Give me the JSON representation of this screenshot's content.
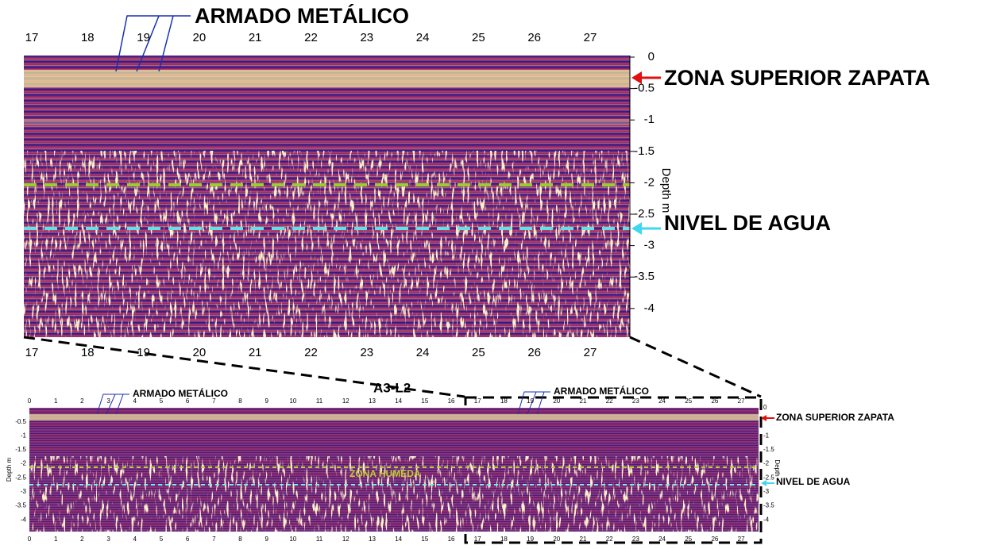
{
  "top_panel": {
    "x_ticks_top": [
      17,
      18,
      19,
      20,
      21,
      22,
      23,
      24,
      25,
      26,
      27
    ],
    "x_ticks_bottom": [
      17,
      18,
      19,
      20,
      21,
      22,
      23,
      24,
      25,
      26,
      27
    ],
    "y_ticks": [
      0,
      -0.5,
      -1,
      -1.5,
      -2,
      -2.5,
      -3,
      -3.5,
      -4
    ],
    "y_label": "Depth m",
    "annotations": {
      "rebar": "ARMADO METÁLICO",
      "footing_top": "ZONA SUPERIOR ZAPATA",
      "water_level": "NIVEL DE AGUA"
    }
  },
  "bottom_panel": {
    "title": "A3-L2",
    "x_ticks_top": [
      0,
      1,
      2,
      3,
      4,
      5,
      6,
      7,
      8,
      9,
      10,
      11,
      12,
      13,
      14,
      15,
      16,
      17,
      18,
      19,
      20,
      21,
      22,
      23,
      24,
      25,
      26,
      27
    ],
    "x_ticks_bottom": [
      0,
      1,
      2,
      3,
      4,
      5,
      6,
      7,
      8,
      9,
      10,
      11,
      12,
      13,
      14,
      15,
      16,
      17,
      18,
      19,
      20,
      21,
      22,
      23,
      24,
      25,
      26,
      27
    ],
    "left_y_ticks": [
      -0.5,
      -1,
      -1.5,
      -2,
      -2.5,
      -3,
      -3.5,
      -4
    ],
    "right_y_ticks": [
      0,
      -1,
      -1.5,
      -2,
      -2.5,
      -3,
      -3.5,
      -4
    ],
    "left_y_label": "Depth m",
    "right_y_label": "Depth",
    "annotations": {
      "rebar_left": "ARMADO METÁLICO",
      "rebar_right": "ARMADO METÁLICO",
      "footing_top": "ZONA SUPERIOR ZAPATA",
      "wet_zone": "ZONA HUMEDA",
      "water_level": "NIVEL DE AGUA"
    }
  }
}
